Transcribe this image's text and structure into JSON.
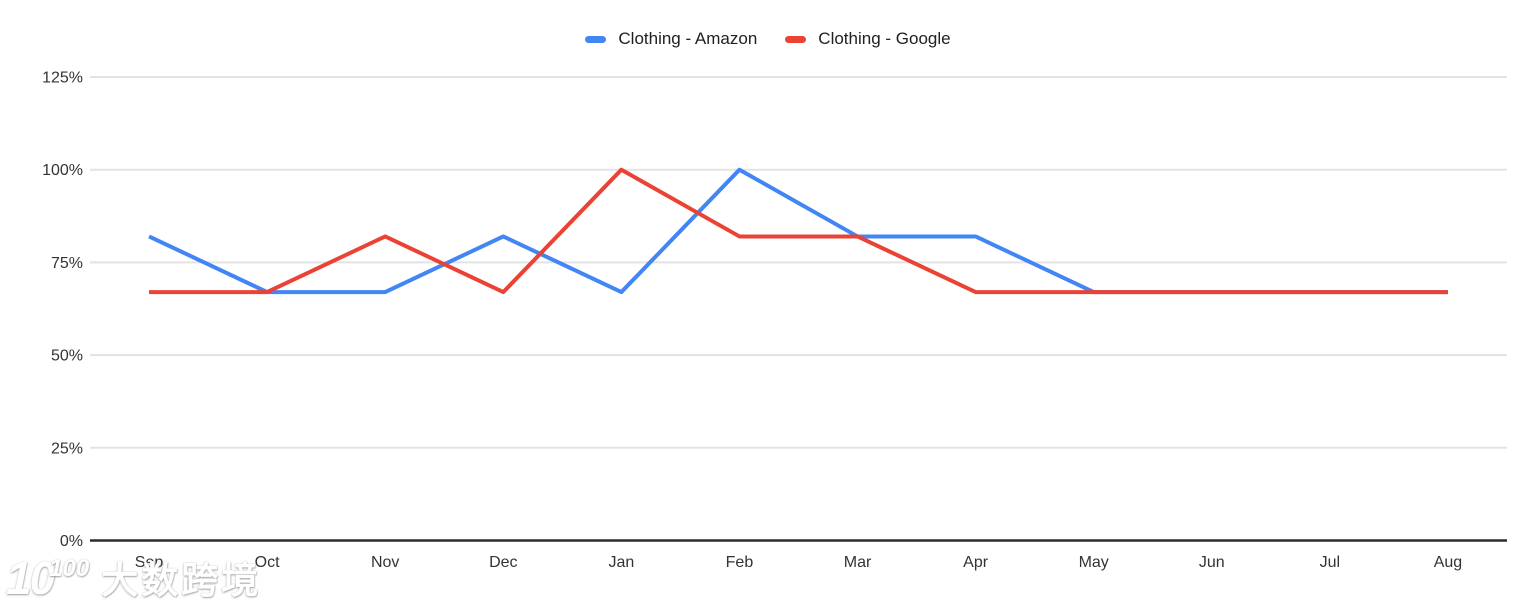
{
  "legend": {
    "items": [
      {
        "label": "Clothing - Amazon"
      },
      {
        "label": "Clothing - Google"
      }
    ]
  },
  "watermark": {
    "logo_prefix": "10",
    "logo_suffix": "100",
    "text": "大数跨境"
  },
  "chart_data": {
    "type": "line",
    "categories": [
      "Sep",
      "Oct",
      "Nov",
      "Dec",
      "Jan",
      "Feb",
      "Mar",
      "Apr",
      "May",
      "Jun",
      "Jul",
      "Aug"
    ],
    "series": [
      {
        "name": "Clothing - Amazon",
        "color": "#4285f4",
        "values": [
          82,
          67,
          67,
          82,
          67,
          100,
          82,
          82,
          67,
          67,
          67,
          67
        ]
      },
      {
        "name": "Clothing - Google",
        "color": "#ea4335",
        "values": [
          67,
          67,
          82,
          67,
          100,
          82,
          82,
          67,
          67,
          67,
          67,
          67
        ]
      }
    ],
    "title": "",
    "xlabel": "",
    "ylabel": "",
    "ylim": [
      0,
      125
    ],
    "ytick_step": 25,
    "ytick_suffix": "%",
    "grid": true,
    "legend_position": "top",
    "axis_text_color": "#333333",
    "gridline_color": "#e3e3e3",
    "baseline_color": "#2b2b2b"
  }
}
